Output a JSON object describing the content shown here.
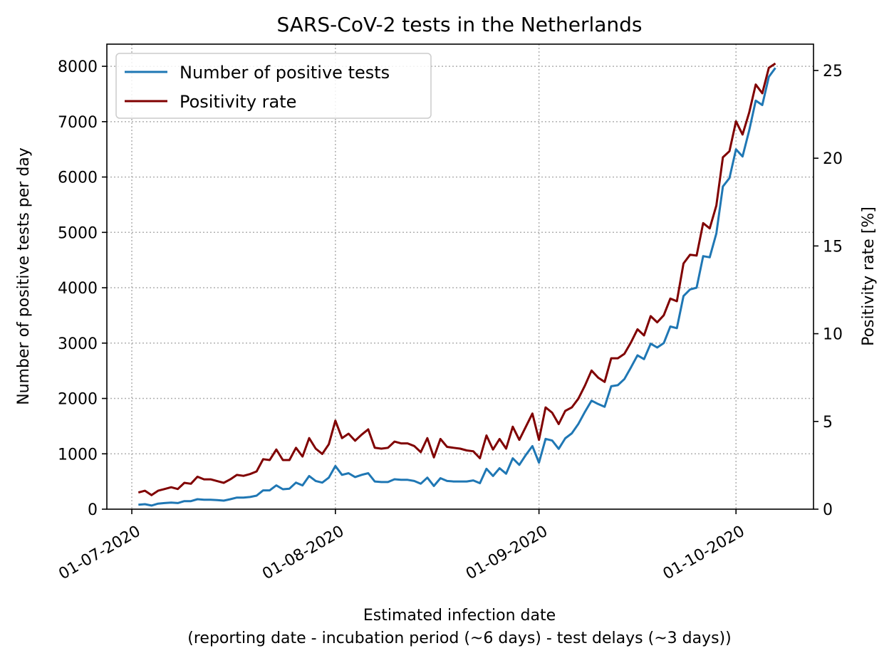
{
  "chart_data": {
    "type": "line",
    "title": "SARS-CoV-2 tests in the Netherlands",
    "xlabel_line1": "Estimated infection date",
    "xlabel_line2": "(reporting date - incubation period (~6 days) - test delays (~3 days))",
    "ylabel_left": "Number of positive tests per day",
    "ylabel_right": "Positivity rate [%]",
    "x_tick_labels": [
      "01-07-2020",
      "01-08-2020",
      "01-09-2020",
      "01-10-2020"
    ],
    "x_tick_days": [
      0,
      31,
      62,
      92
    ],
    "x_start_date": "2020-07-01",
    "xlim_days": [
      -3.8,
      103.8
    ],
    "ylim_left": [
      0,
      8400
    ],
    "yticks_left": [
      0,
      1000,
      2000,
      3000,
      4000,
      5000,
      6000,
      7000,
      8000
    ],
    "ylim_right": [
      0,
      26.5
    ],
    "yticks_right": [
      0,
      5,
      10,
      15,
      20,
      25
    ],
    "grid": true,
    "legend_position": "top-left",
    "series": [
      {
        "name": "Number of positive tests",
        "axis": "left",
        "color": "#1f77b4",
        "x_start_day": 1,
        "values": [
          80,
          90,
          65,
          100,
          110,
          120,
          110,
          145,
          145,
          180,
          170,
          170,
          165,
          155,
          180,
          210,
          210,
          220,
          245,
          340,
          340,
          430,
          360,
          370,
          480,
          430,
          600,
          510,
          480,
          570,
          780,
          620,
          650,
          580,
          620,
          650,
          500,
          490,
          490,
          540,
          530,
          530,
          510,
          460,
          570,
          420,
          560,
          510,
          500,
          500,
          500,
          520,
          470,
          730,
          600,
          740,
          640,
          920,
          800,
          980,
          1140,
          840,
          1270,
          1240,
          1090,
          1280,
          1370,
          1540,
          1760,
          1960,
          1900,
          1850,
          2220,
          2240,
          2350,
          2560,
          2780,
          2710,
          2990,
          2920,
          3000,
          3300,
          3270,
          3850,
          3970,
          4000,
          4570,
          4550,
          4980,
          5830,
          5980,
          6500,
          6370,
          6840,
          7380,
          7300,
          7810,
          7970
        ]
      },
      {
        "name": "Positivity rate",
        "axis": "right",
        "color": "#800000",
        "x_start_day": 1,
        "values": [
          0.95,
          1.05,
          0.8,
          1.05,
          1.15,
          1.25,
          1.15,
          1.5,
          1.45,
          1.85,
          1.7,
          1.7,
          1.6,
          1.5,
          1.7,
          1.95,
          1.9,
          2.0,
          2.15,
          2.85,
          2.8,
          3.4,
          2.8,
          2.8,
          3.5,
          3.0,
          4.05,
          3.45,
          3.15,
          3.7,
          5.05,
          4.05,
          4.3,
          3.9,
          4.25,
          4.55,
          3.5,
          3.45,
          3.5,
          3.85,
          3.75,
          3.75,
          3.6,
          3.25,
          4.05,
          2.95,
          4.0,
          3.55,
          3.5,
          3.45,
          3.35,
          3.3,
          2.9,
          4.2,
          3.4,
          4.0,
          3.45,
          4.7,
          3.95,
          4.7,
          5.45,
          3.95,
          5.8,
          5.5,
          4.85,
          5.6,
          5.8,
          6.3,
          7.05,
          7.9,
          7.5,
          7.25,
          8.6,
          8.6,
          8.85,
          9.5,
          10.25,
          9.9,
          11.0,
          10.65,
          11.05,
          12.0,
          11.85,
          14.0,
          14.5,
          14.45,
          16.3,
          16.0,
          17.3,
          20.05,
          20.4,
          22.1,
          21.35,
          22.6,
          24.2,
          23.7,
          25.15,
          25.4
        ]
      }
    ]
  }
}
